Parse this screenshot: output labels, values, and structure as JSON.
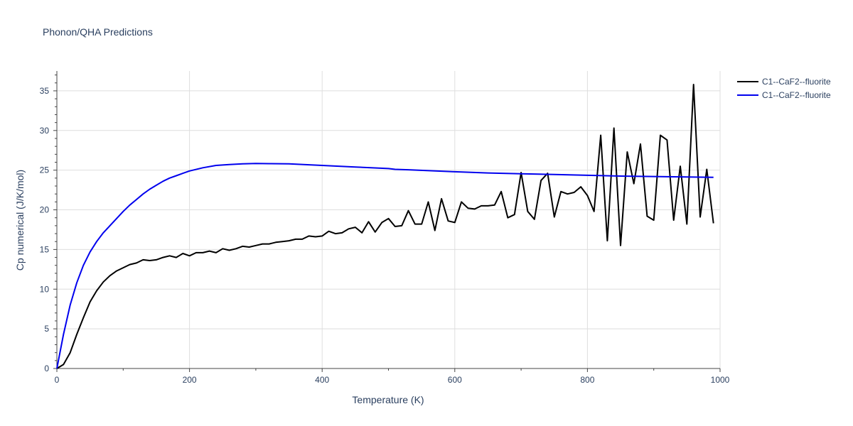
{
  "chart_data": {
    "type": "line",
    "title": "Phonon/QHA Predictions",
    "xlabel": "Temperature (K)",
    "ylabel": "Cp numerical (J/K/mol)",
    "xlim": [
      0,
      1000
    ],
    "ylim": [
      0,
      37.5
    ],
    "xticks": [
      0,
      200,
      400,
      600,
      800,
      1000
    ],
    "xtick_labels": [
      "0",
      "200",
      "400",
      "600",
      "800",
      "1000"
    ],
    "yticks": [
      0,
      5,
      10,
      15,
      20,
      25,
      30,
      35
    ],
    "ytick_labels": [
      "0",
      "5",
      "10",
      "15",
      "20",
      "25",
      "30",
      "35"
    ],
    "grid": true,
    "legend_position": "top-right",
    "series": [
      {
        "name": "C1--CaF2--fluorite",
        "color": "#000000",
        "x": [
          0,
          10,
          20,
          30,
          40,
          50,
          60,
          70,
          80,
          90,
          100,
          110,
          120,
          130,
          140,
          150,
          160,
          170,
          180,
          190,
          200,
          210,
          220,
          230,
          240,
          250,
          260,
          270,
          280,
          290,
          300,
          310,
          320,
          330,
          340,
          350,
          360,
          370,
          380,
          390,
          400,
          410,
          420,
          430,
          440,
          450,
          460,
          470,
          480,
          490,
          500,
          510,
          520,
          530,
          540,
          550,
          560,
          570,
          580,
          590,
          600,
          610,
          620,
          630,
          640,
          650,
          660,
          670,
          680,
          690,
          700,
          710,
          720,
          730,
          740,
          750,
          760,
          770,
          780,
          790,
          800,
          810,
          820,
          830,
          840,
          850,
          860,
          870,
          880,
          890,
          900,
          910,
          920,
          930,
          940,
          950,
          960,
          970,
          980,
          990
        ],
        "y": [
          0,
          0.5,
          2.0,
          4.3,
          6.4,
          8.4,
          9.8,
          10.9,
          11.7,
          12.3,
          12.7,
          13.1,
          13.3,
          13.7,
          13.6,
          13.7,
          14.0,
          14.2,
          14.0,
          14.5,
          14.2,
          14.6,
          14.6,
          14.8,
          14.6,
          15.1,
          14.9,
          15.1,
          15.4,
          15.3,
          15.5,
          15.7,
          15.7,
          15.9,
          16.0,
          16.1,
          16.3,
          16.3,
          16.7,
          16.6,
          16.7,
          17.3,
          17.0,
          17.1,
          17.6,
          17.8,
          17.1,
          18.5,
          17.2,
          18.4,
          18.9,
          17.9,
          18.0,
          19.9,
          18.2,
          18.2,
          21.0,
          17.4,
          21.4,
          18.6,
          18.4,
          21.0,
          20.2,
          20.1,
          20.5,
          20.5,
          20.6,
          22.3,
          19.0,
          19.4,
          24.7,
          19.8,
          18.8,
          23.7,
          24.6,
          19.1,
          22.3,
          22.0,
          22.2,
          22.9,
          21.8,
          19.8,
          29.4,
          16.1,
          30.3,
          15.5,
          27.3,
          23.3,
          28.3,
          19.2,
          18.7,
          29.4,
          28.8,
          18.7,
          25.5,
          18.2,
          35.8,
          19.1,
          25.1,
          18.3
        ]
      },
      {
        "name": "C1--CaF2--fluorite",
        "color": "#0000ee",
        "x": [
          0,
          10,
          20,
          30,
          40,
          50,
          60,
          70,
          80,
          90,
          100,
          110,
          120,
          130,
          140,
          150,
          160,
          170,
          180,
          190,
          200,
          220,
          240,
          260,
          280,
          300,
          320,
          350,
          400,
          450,
          500,
          510,
          530,
          600,
          650,
          700,
          750,
          800,
          850,
          900,
          950,
          990
        ],
        "y": [
          0,
          4.3,
          8.0,
          10.8,
          13.0,
          14.7,
          16.0,
          17.1,
          18.0,
          18.9,
          19.8,
          20.6,
          21.3,
          22.0,
          22.6,
          23.1,
          23.6,
          24.0,
          24.3,
          24.6,
          24.9,
          25.3,
          25.6,
          25.7,
          25.8,
          25.85,
          25.82,
          25.8,
          25.6,
          25.4,
          25.2,
          25.1,
          25.05,
          24.8,
          24.65,
          24.55,
          24.45,
          24.35,
          24.25,
          24.2,
          24.15,
          24.1
        ]
      }
    ]
  }
}
